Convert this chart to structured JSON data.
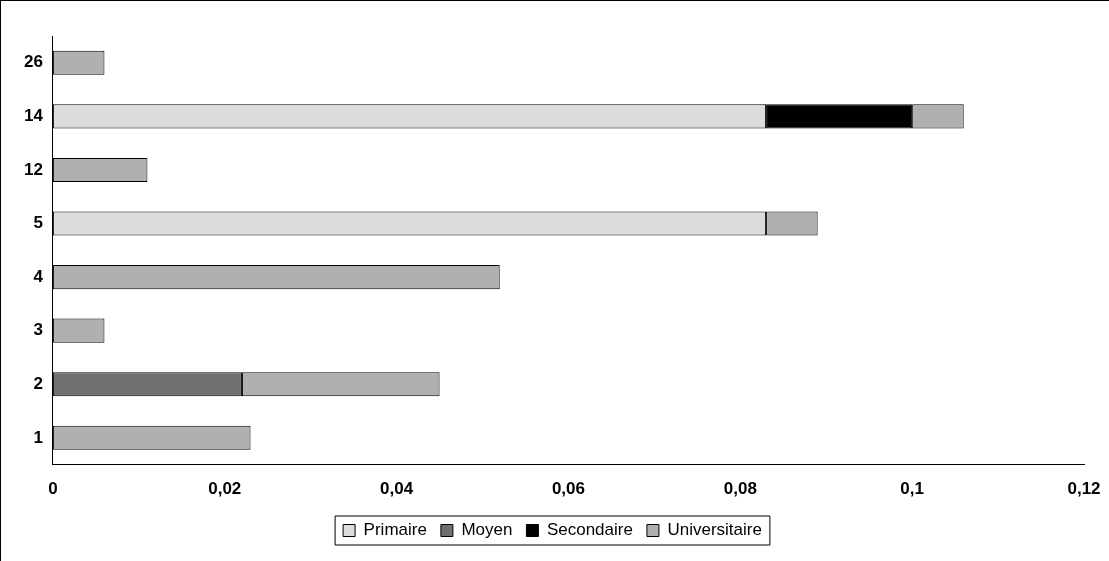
{
  "chart_data": {
    "type": "bar",
    "orientation": "horizontal",
    "stacked": true,
    "categories": [
      "26",
      "14",
      "12",
      "5",
      "4",
      "3",
      "2",
      "1"
    ],
    "series": [
      {
        "name": "Primaire",
        "color": "#dcdcdc",
        "values": [
          0,
          0.083,
          0,
          0.083,
          0,
          0,
          0,
          0
        ]
      },
      {
        "name": "Moyen",
        "color": "#707070",
        "values": [
          0,
          0,
          0,
          0,
          0,
          0,
          0.022,
          0
        ]
      },
      {
        "name": "Secondaire",
        "color": "#000000",
        "values": [
          0,
          0.017,
          0,
          0,
          0,
          0,
          0,
          0
        ]
      },
      {
        "name": "Universitaire",
        "color": "#b0b0b0",
        "values": [
          0.006,
          0.006,
          0.011,
          0.006,
          0.052,
          0.006,
          0.023,
          0.023
        ]
      }
    ],
    "xlim": [
      0,
      0.12
    ],
    "xticks": [
      {
        "value": 0,
        "label": "0"
      },
      {
        "value": 0.02,
        "label": "0,02"
      },
      {
        "value": 0.04,
        "label": "0,04"
      },
      {
        "value": 0.06,
        "label": "0,06"
      },
      {
        "value": 0.08,
        "label": "0,08"
      },
      {
        "value": 0.1,
        "label": "0,1"
      },
      {
        "value": 0.12,
        "label": "0,12"
      }
    ],
    "grid": false,
    "legend": "bottom"
  }
}
